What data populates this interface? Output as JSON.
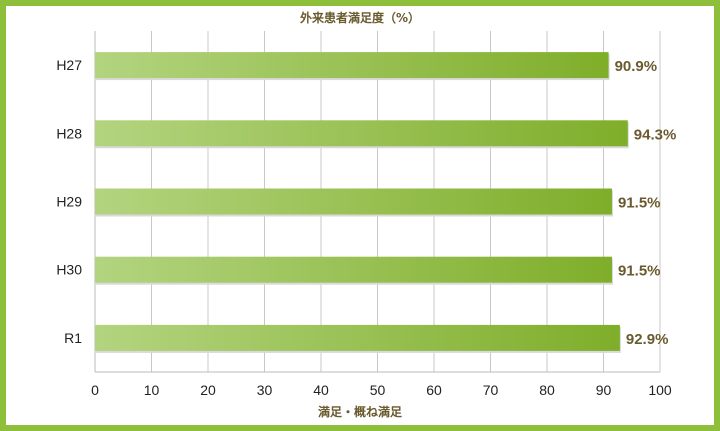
{
  "chart_data": {
    "type": "bar",
    "orientation": "horizontal",
    "title": "外来患者満足度（%）",
    "xlabel": "満足・概ね満足",
    "ylabel": "",
    "categories": [
      "H27",
      "H28",
      "H29",
      "H30",
      "R1"
    ],
    "values": [
      90.9,
      94.3,
      91.5,
      91.5,
      92.9
    ],
    "value_labels": [
      "90.9%",
      "94.3%",
      "91.5%",
      "91.5%",
      "92.9%"
    ],
    "xlim": [
      0,
      100
    ],
    "xticks": [
      0,
      10,
      20,
      30,
      40,
      50,
      60,
      70,
      80,
      90,
      100
    ],
    "xtick_labels": [
      "0",
      "10",
      "20",
      "30",
      "40",
      "50",
      "60",
      "70",
      "80",
      "90",
      "100"
    ],
    "grid": "vertical",
    "legend": "none",
    "colors": {
      "bar_start": "#b3d47f",
      "bar_end": "#7fae2a",
      "frame": "#8dbf3a",
      "label": "#6a5a2e"
    }
  }
}
